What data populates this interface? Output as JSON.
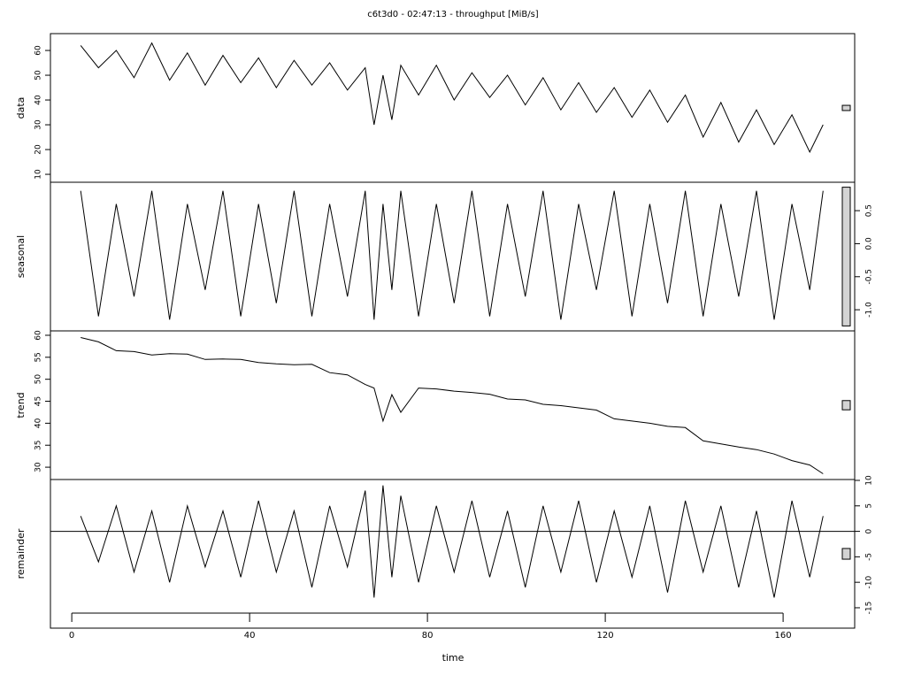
{
  "chart_data": {
    "type": "line",
    "title": "c6t3d0 - 02:47:13 - throughput [MiB/s]",
    "xlabel": "time",
    "x": [
      2,
      6,
      10,
      14,
      18,
      22,
      26,
      30,
      34,
      38,
      42,
      46,
      50,
      54,
      58,
      62,
      66,
      68,
      70,
      72,
      74,
      78,
      82,
      86,
      90,
      94,
      98,
      102,
      106,
      110,
      114,
      118,
      122,
      126,
      130,
      134,
      138,
      142,
      146,
      150,
      154,
      158,
      162,
      166,
      169
    ],
    "xlim": [
      -4.8,
      176.1
    ],
    "xticks": [
      0,
      40,
      80,
      120,
      160
    ],
    "color": "#000000",
    "range_bar": 2.1,
    "panels": [
      {
        "ylabel": "data",
        "ylim": [
          6.8,
          66.8
        ],
        "yticks": [
          10,
          20,
          30,
          40,
          50,
          60
        ],
        "axis_side": "left",
        "values": [
          62,
          53,
          60,
          49,
          63,
          48,
          59,
          46,
          58,
          47,
          57,
          45,
          56,
          46,
          55,
          44,
          53,
          30,
          50,
          32,
          54,
          42,
          54,
          40,
          51,
          41,
          50,
          38,
          49,
          36,
          47,
          35,
          45,
          33,
          44,
          31,
          42,
          25,
          39,
          23,
          36,
          22,
          34,
          19,
          30
        ]
      },
      {
        "ylabel": "seasonal",
        "ylim": [
          -1.32,
          0.93
        ],
        "yticks": [
          {
            "value": -1,
            "label": "-1.0"
          },
          -0.5,
          {
            "value": 0,
            "label": "0.0"
          },
          0.5
        ],
        "axis_side": "right",
        "values": [
          0.8,
          -1.1,
          0.6,
          -0.8,
          0.8,
          -1.15,
          0.6,
          -0.7,
          0.8,
          -1.1,
          0.6,
          -0.9,
          0.8,
          -1.1,
          0.6,
          -0.8,
          0.8,
          -1.15,
          0.6,
          -0.7,
          0.8,
          -1.1,
          0.6,
          -0.9,
          0.8,
          -1.1,
          0.6,
          -0.8,
          0.8,
          -1.15,
          0.6,
          -0.7,
          0.8,
          -1.1,
          0.6,
          -0.9,
          0.8,
          -1.1,
          0.6,
          -0.8,
          0.8,
          -1.15,
          0.6,
          -0.7,
          0.8
        ]
      },
      {
        "ylabel": "trend",
        "ylim": [
          27.2,
          61.0
        ],
        "yticks": [
          30,
          35,
          40,
          45,
          50,
          55,
          60
        ],
        "axis_side": "left",
        "values": [
          59.5,
          58.5,
          56.5,
          56.3,
          55.5,
          55.8,
          55.7,
          54.5,
          54.6,
          54.5,
          53.8,
          53.5,
          53.3,
          53.4,
          51.5,
          51.0,
          48.8,
          48.0,
          40.5,
          46.5,
          42.5,
          48.0,
          47.8,
          47.3,
          47.0,
          46.6,
          45.5,
          45.3,
          44.3,
          44.0,
          43.5,
          43.0,
          41.0,
          40.5,
          40.0,
          39.3,
          39.0,
          36.0,
          35.3,
          34.6,
          34.0,
          33.0,
          31.5,
          30.5,
          28.5
        ]
      },
      {
        "ylabel": "remainder",
        "ylim": [
          -19.0,
          10.17
        ],
        "yticks": [
          -15,
          -10,
          -5,
          0,
          5,
          10
        ],
        "axis_side": "right",
        "zero_line": true,
        "values": [
          3,
          -6,
          5,
          -8,
          4,
          -10,
          5,
          -7,
          4,
          -9,
          6,
          -8,
          4,
          -11,
          5,
          -7,
          8,
          -13,
          9,
          -9,
          7,
          -10,
          5,
          -8,
          6,
          -9,
          4,
          -11,
          5,
          -8,
          6,
          -10,
          4,
          -9,
          5,
          -12,
          6,
          -8,
          5,
          -11,
          4,
          -13,
          6,
          -9,
          3
        ]
      }
    ]
  }
}
